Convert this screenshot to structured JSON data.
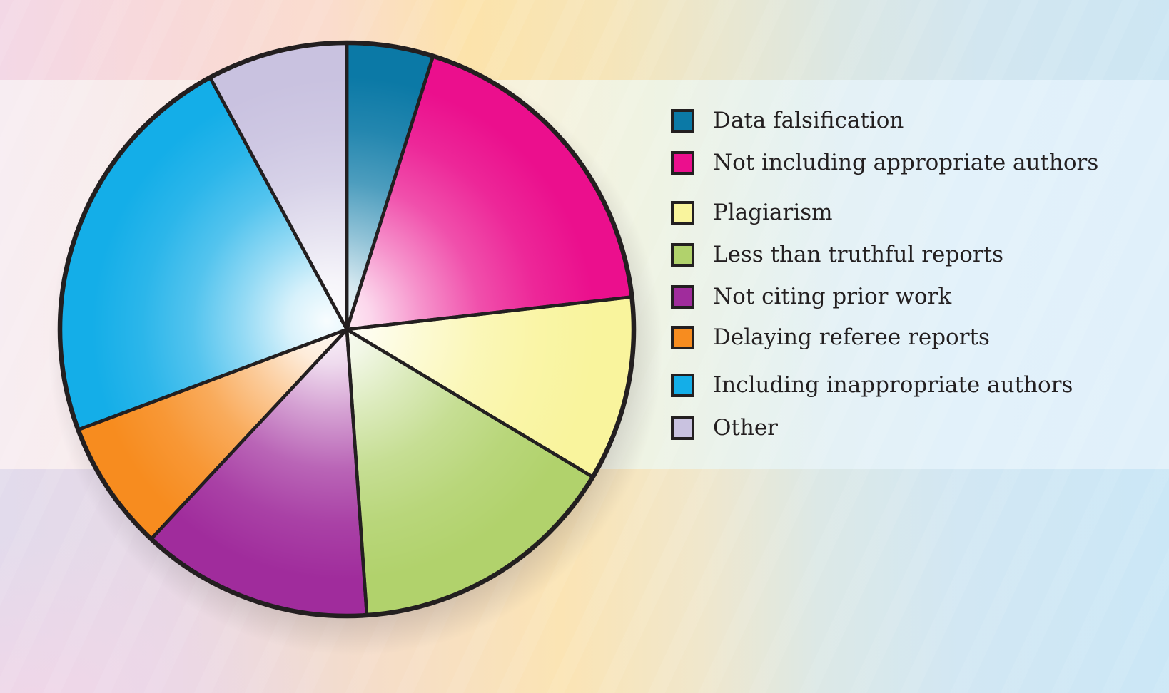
{
  "chart_data": {
    "type": "pie",
    "title": "",
    "legend_position": "right",
    "direction": "clockwise",
    "start_reference": "12-oclock",
    "outline_color": "#231f20",
    "center_glow": true,
    "slices": [
      {
        "label": "Data falsification",
        "color": "#0b79a6",
        "start_deg": 0,
        "end_deg": 17.5,
        "percent": 4.9
      },
      {
        "label": "Not including appropriate authors",
        "color": "#eb0f8d",
        "start_deg": 17.5,
        "end_deg": 83.5,
        "percent": 18.3
      },
      {
        "label": "Plagiarism",
        "color": "#f9f49d",
        "start_deg": 83.5,
        "end_deg": 121,
        "percent": 10.4
      },
      {
        "label": "Less than truthful reports",
        "color": "#b1d26c",
        "start_deg": 121,
        "end_deg": 176,
        "percent": 15.3
      },
      {
        "label": "Not citing prior work",
        "color": "#a02c9c",
        "start_deg": 176,
        "end_deg": 223,
        "percent": 13.1
      },
      {
        "label": "Delaying referee reports",
        "color": "#f78c1f",
        "start_deg": 223,
        "end_deg": 249.5,
        "percent": 7.4
      },
      {
        "label": "Including inappropriate authors",
        "color": "#14aee8",
        "start_deg": 249.5,
        "end_deg": 331.5,
        "percent": 22.8
      },
      {
        "label": "Other",
        "color": "#c9c2e0",
        "start_deg": 331.5,
        "end_deg": 360,
        "percent": 7.9
      }
    ]
  },
  "legend": {
    "swatch_border_color": "#231f20",
    "text_color": "#231f20"
  }
}
